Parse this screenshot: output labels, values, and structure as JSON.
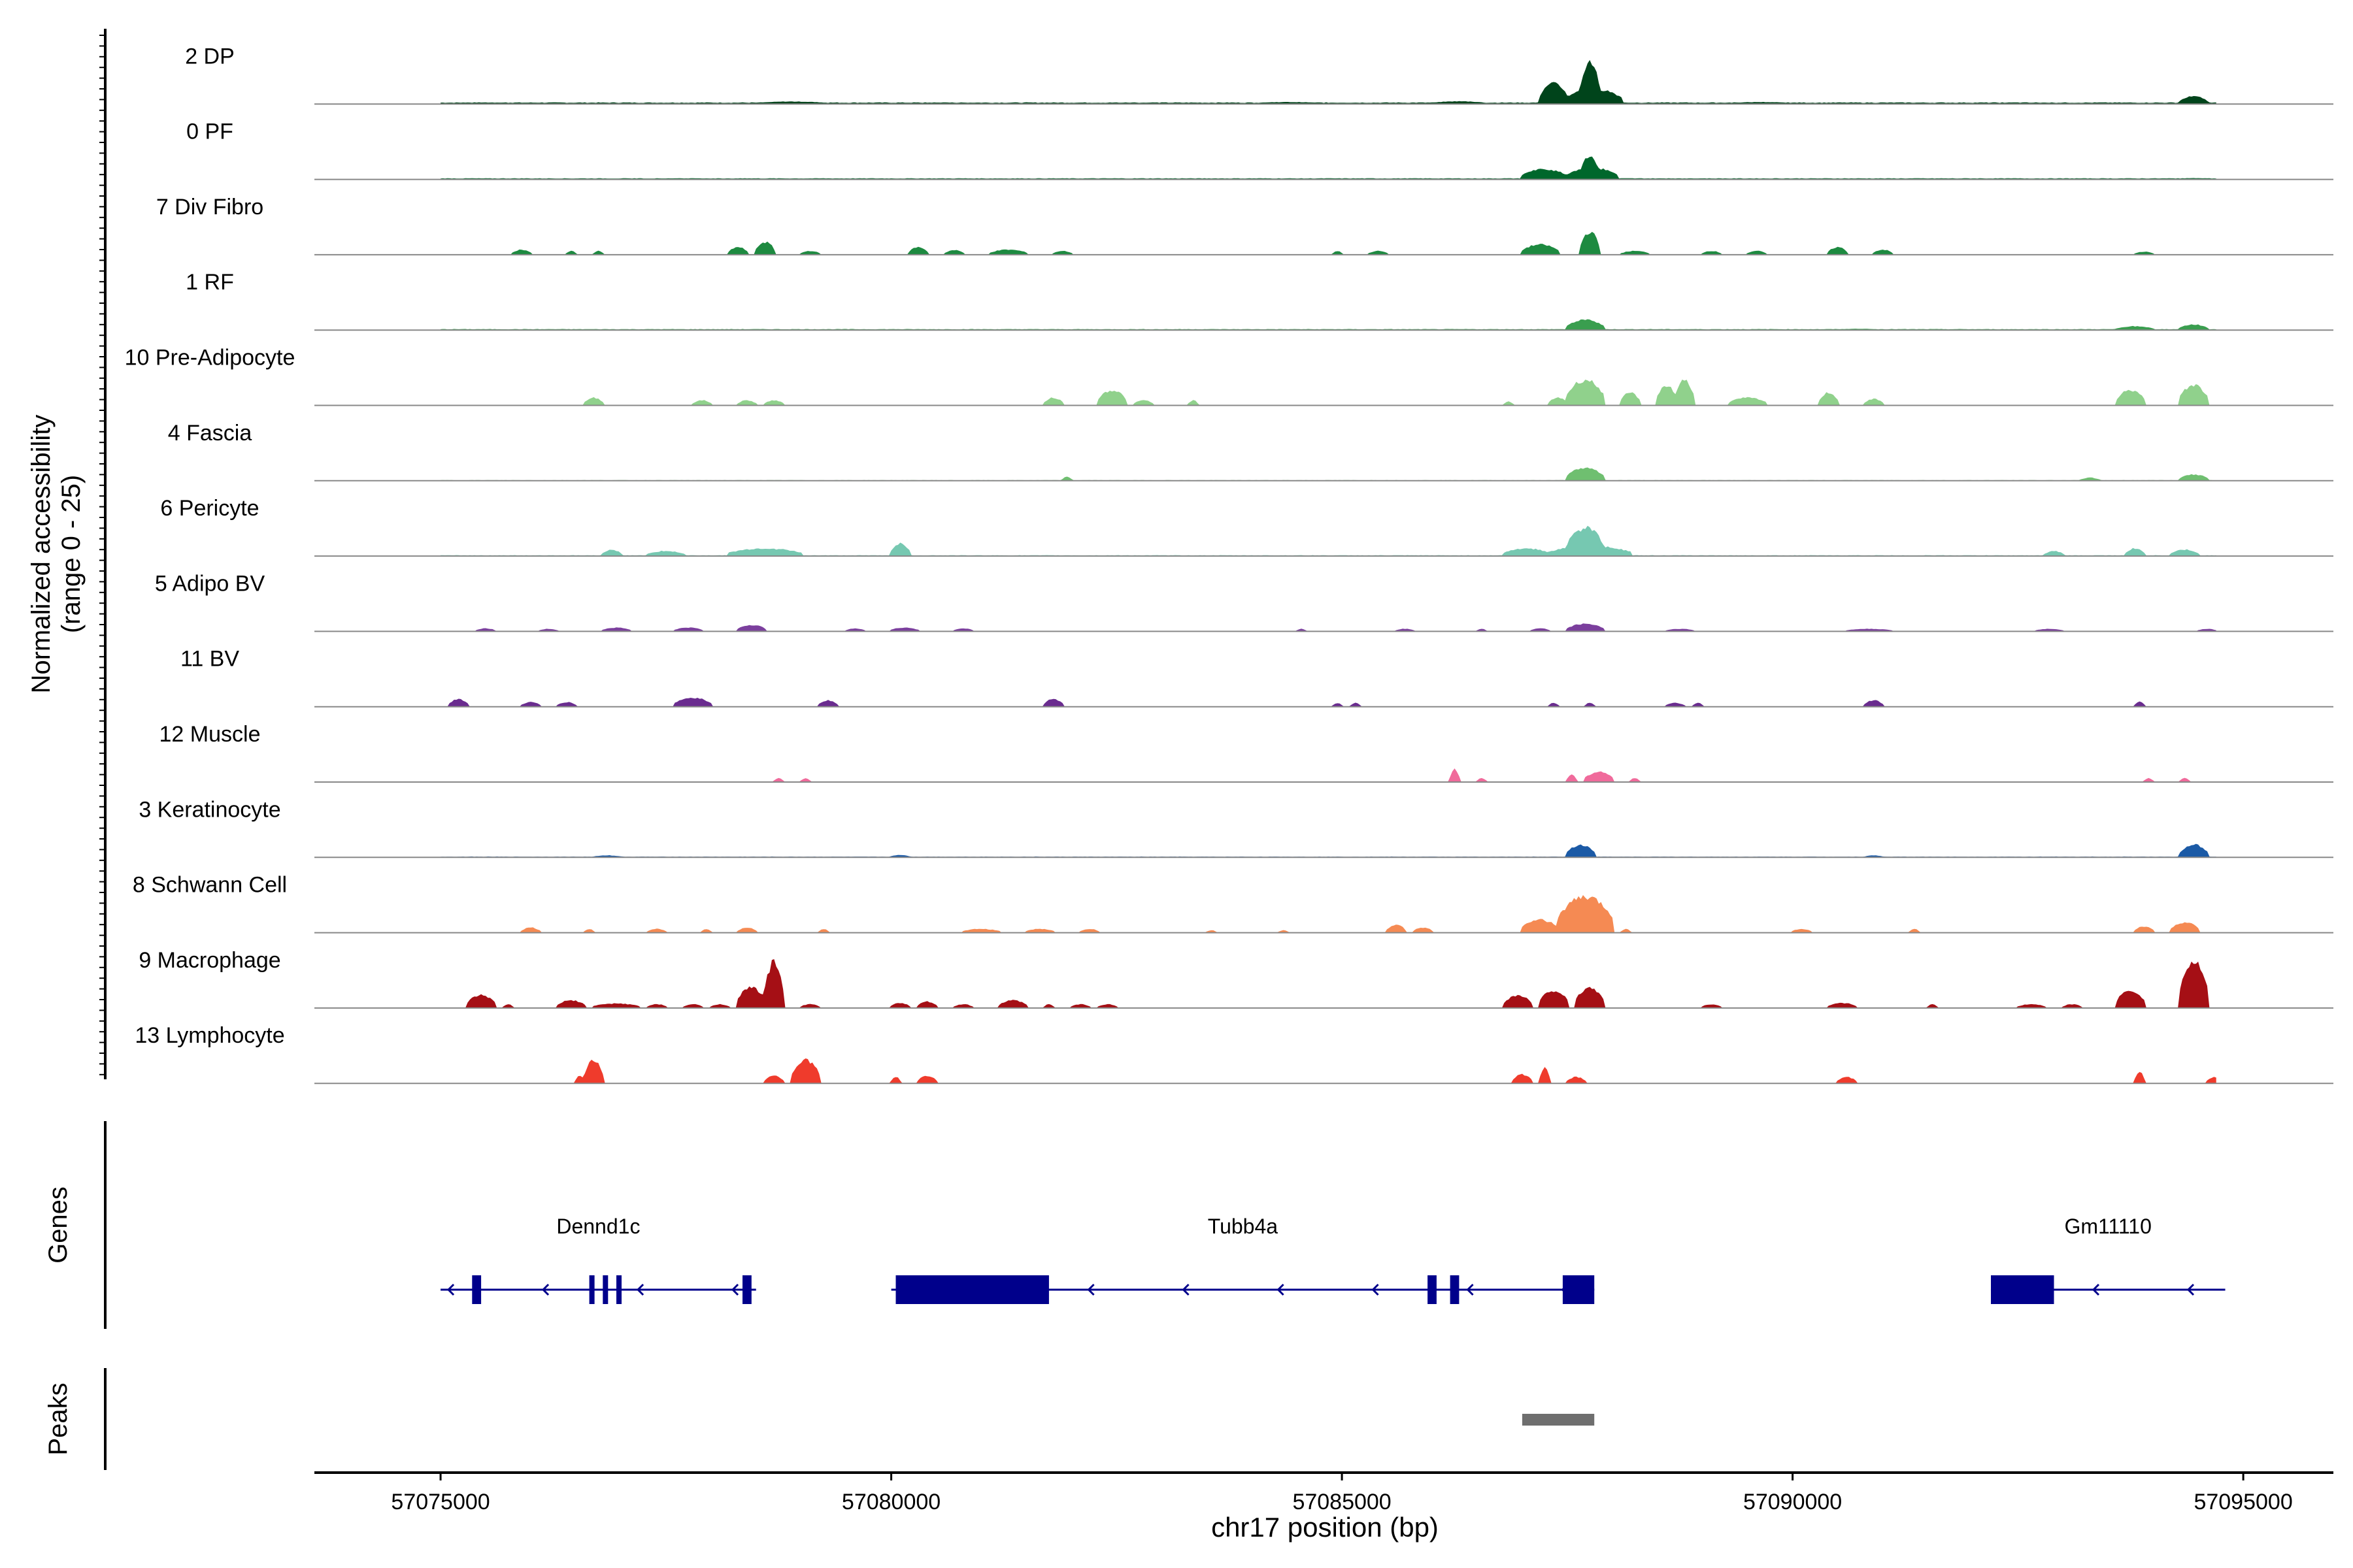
{
  "chart_data": {
    "type": "area",
    "title": "",
    "ylabel_line1": "Normalized accessibility",
    "ylabel_line2": "(range 0 - 25)",
    "xlabel": "chr17 position (bp)",
    "ylim": [
      0,
      25
    ],
    "region": [
      57075000,
      57094700
    ],
    "x_ticks": [
      57075000,
      57080000,
      57085000,
      57090000,
      57095000
    ],
    "x_tick_labels": [
      "57075000",
      "57080000",
      "57085000",
      "57090000",
      "57095000"
    ],
    "tracks": [
      {
        "name": "2 DP",
        "color": "#00441b",
        "baseline": 0.4,
        "noise": 0.25,
        "peaks": [
          [
            57075200,
            57075800,
            0.6
          ],
          [
            57078500,
            57079300,
            1.0
          ],
          [
            57080300,
            57080800,
            0.6
          ],
          [
            57082400,
            57082900,
            0.5
          ],
          [
            57084000,
            57084800,
            0.8
          ],
          [
            57086000,
            57086600,
            1.1
          ],
          [
            57087200,
            57087500,
            8.0
          ],
          [
            57087650,
            57087850,
            17.0
          ],
          [
            57087500,
            57088100,
            6.0
          ],
          [
            57089300,
            57090000,
            0.8
          ],
          [
            57092300,
            57092800,
            0.5
          ],
          [
            57094300,
            57094600,
            3.0
          ]
        ]
      },
      {
        "name": "0 PF",
        "color": "#00672c",
        "baseline": 0.3,
        "noise": 0.15,
        "peaks": [
          [
            57077000,
            57078500,
            0.4
          ],
          [
            57087000,
            57087500,
            4.0
          ],
          [
            57087650,
            57087850,
            9.0
          ],
          [
            57087500,
            57088050,
            4.5
          ],
          [
            57088500,
            57089000,
            0.4
          ],
          [
            57094200,
            57094700,
            0.5
          ]
        ]
      },
      {
        "name": "7 Div Fibro",
        "color": "#1d8a40",
        "baseline": 0,
        "noise": 0,
        "peaks": [
          [
            57075800,
            57076000,
            2.0
          ],
          [
            57076400,
            57076500,
            1.5
          ],
          [
            57076700,
            57076800,
            1.5
          ],
          [
            57078200,
            57078400,
            3.0
          ],
          [
            57078500,
            57078700,
            5.0
          ],
          [
            57079000,
            57079200,
            1.5
          ],
          [
            57080200,
            57080400,
            3.0
          ],
          [
            57080600,
            57080800,
            1.8
          ],
          [
            57081100,
            57081500,
            2.0
          ],
          [
            57081800,
            57082000,
            1.5
          ],
          [
            57084900,
            57085000,
            1.5
          ],
          [
            57085300,
            57085500,
            1.5
          ],
          [
            57087000,
            57087400,
            4.0
          ],
          [
            57087650,
            57087850,
            9.0
          ],
          [
            57088100,
            57088400,
            1.5
          ],
          [
            57089000,
            57089200,
            1.5
          ],
          [
            57089500,
            57089700,
            1.5
          ],
          [
            57090400,
            57090600,
            3.0
          ],
          [
            57090900,
            57091100,
            2.0
          ],
          [
            57093800,
            57094000,
            1.2
          ]
        ]
      },
      {
        "name": "1 RF",
        "color": "#3a9e4f",
        "baseline": 0.25,
        "noise": 0.15,
        "peaks": [
          [
            57087500,
            57087900,
            4.0
          ],
          [
            57090500,
            57091000,
            0.5
          ],
          [
            57093600,
            57094000,
            1.5
          ],
          [
            57094300,
            57094600,
            2.2
          ]
        ]
      },
      {
        "name": "10 Pre-Adipocyte",
        "color": "#90d18c",
        "baseline": 0,
        "noise": 0,
        "peaks": [
          [
            57076600,
            57076800,
            3.0
          ],
          [
            57077800,
            57078000,
            2.0
          ],
          [
            57078300,
            57078500,
            2.0
          ],
          [
            57078600,
            57078800,
            2.0
          ],
          [
            57081700,
            57081900,
            3.0
          ],
          [
            57082300,
            57082600,
            6.0
          ],
          [
            57082700,
            57082900,
            2.0
          ],
          [
            57083300,
            57083400,
            2.0
          ],
          [
            57086800,
            57086900,
            1.5
          ],
          [
            57087300,
            57087500,
            3.0
          ],
          [
            57087500,
            57087900,
            10.0
          ],
          [
            57088100,
            57088300,
            5.0
          ],
          [
            57088500,
            57088700,
            8.0
          ],
          [
            57088700,
            57088900,
            10.0
          ],
          [
            57089300,
            57089700,
            3.0
          ],
          [
            57090300,
            57090500,
            5.0
          ],
          [
            57090800,
            57091000,
            2.5
          ],
          [
            57093600,
            57093900,
            6.0
          ],
          [
            57094300,
            57094600,
            8.0
          ]
        ]
      },
      {
        "name": "4 Fascia",
        "color": "#6fbf70",
        "baseline": 0.15,
        "noise": 0.1,
        "peaks": [
          [
            57081900,
            57082000,
            1.5
          ],
          [
            57087500,
            57087900,
            5.0
          ],
          [
            57093200,
            57093400,
            1.2
          ],
          [
            57094300,
            57094600,
            2.5
          ]
        ]
      },
      {
        "name": "6 Pericyte",
        "color": "#76c8b1",
        "baseline": 0.2,
        "noise": 0.15,
        "peaks": [
          [
            57076800,
            57077000,
            2.5
          ],
          [
            57077300,
            57077700,
            2.0
          ],
          [
            57078200,
            57079000,
            3.0
          ],
          [
            57080000,
            57080200,
            5.0
          ],
          [
            57086800,
            57087300,
            3.0
          ],
          [
            57087500,
            57087900,
            11.0
          ],
          [
            57087300,
            57088200,
            4.0
          ],
          [
            57092800,
            57093000,
            2.0
          ],
          [
            57093700,
            57093900,
            3.0
          ],
          [
            57094200,
            57094500,
            2.5
          ]
        ]
      },
      {
        "name": "5 Adipo BV",
        "color": "#7b3f9d",
        "baseline": 0,
        "noise": 0,
        "peaks": [
          [
            57075400,
            57075600,
            1.2
          ],
          [
            57076100,
            57076300,
            1.0
          ],
          [
            57076800,
            57077100,
            1.5
          ],
          [
            57077600,
            57077900,
            1.5
          ],
          [
            57078300,
            57078600,
            2.5
          ],
          [
            57079500,
            57079700,
            1.2
          ],
          [
            57080000,
            57080300,
            1.5
          ],
          [
            57080700,
            57080900,
            1.2
          ],
          [
            57084500,
            57084600,
            1.0
          ],
          [
            57085600,
            57085800,
            1.0
          ],
          [
            57086500,
            57086600,
            1.0
          ],
          [
            57087100,
            57087300,
            1.2
          ],
          [
            57087500,
            57087900,
            3.0
          ],
          [
            57088600,
            57088900,
            1.0
          ],
          [
            57090600,
            57091100,
            1.0
          ],
          [
            57092700,
            57093000,
            1.0
          ],
          [
            57094500,
            57094700,
            1.0
          ]
        ]
      },
      {
        "name": "11 BV",
        "color": "#6a2c8f",
        "baseline": 0,
        "noise": 0,
        "peaks": [
          [
            57075100,
            57075300,
            3.0
          ],
          [
            57075900,
            57076100,
            1.8
          ],
          [
            57076300,
            57076500,
            1.8
          ],
          [
            57077600,
            57078000,
            3.5
          ],
          [
            57079200,
            57079400,
            2.5
          ],
          [
            57081700,
            57081900,
            3.0
          ],
          [
            57084900,
            57085000,
            1.5
          ],
          [
            57085100,
            57085200,
            1.5
          ],
          [
            57087300,
            57087400,
            1.5
          ],
          [
            57087700,
            57087800,
            1.5
          ],
          [
            57088600,
            57088800,
            1.5
          ],
          [
            57088900,
            57089000,
            1.5
          ],
          [
            57090800,
            57091000,
            2.5
          ],
          [
            57093800,
            57093900,
            2.0
          ]
        ]
      },
      {
        "name": "12 Muscle",
        "color": "#f06a9b",
        "baseline": 0,
        "noise": 0,
        "peaks": [
          [
            57078700,
            57078800,
            1.5
          ],
          [
            57079000,
            57079100,
            1.5
          ],
          [
            57086200,
            57086300,
            5.0
          ],
          [
            57086500,
            57086600,
            1.5
          ],
          [
            57087500,
            57087600,
            3.0
          ],
          [
            57087700,
            57088000,
            4.0
          ],
          [
            57088200,
            57088300,
            1.5
          ],
          [
            57093900,
            57094000,
            1.5
          ],
          [
            57094300,
            57094400,
            1.5
          ]
        ]
      },
      {
        "name": "3 Keratinocyte",
        "color": "#1b5aa6",
        "baseline": 0.2,
        "noise": 0.12,
        "peaks": [
          [
            57076700,
            57077000,
            0.8
          ],
          [
            57080000,
            57080200,
            1.0
          ],
          [
            57087500,
            57087800,
            5.0
          ],
          [
            57090800,
            57091000,
            0.8
          ],
          [
            57094300,
            57094600,
            5.0
          ]
        ]
      },
      {
        "name": "8 Schwann Cell",
        "color": "#f58a53",
        "baseline": 0,
        "noise": 0,
        "peaks": [
          [
            57075900,
            57076100,
            2.0
          ],
          [
            57076600,
            57076700,
            1.5
          ],
          [
            57077300,
            57077500,
            1.5
          ],
          [
            57077900,
            57078000,
            1.5
          ],
          [
            57078300,
            57078500,
            2.0
          ],
          [
            57079200,
            57079300,
            1.5
          ],
          [
            57080800,
            57081200,
            1.5
          ],
          [
            57081500,
            57081800,
            1.5
          ],
          [
            57082100,
            57082300,
            1.5
          ],
          [
            57083500,
            57083600,
            1.0
          ],
          [
            57084300,
            57084400,
            1.0
          ],
          [
            57085500,
            57085700,
            3.0
          ],
          [
            57085800,
            57086000,
            2.0
          ],
          [
            57087000,
            57087400,
            5.0
          ],
          [
            57087400,
            57088000,
            14.0
          ],
          [
            57088100,
            57088200,
            1.5
          ],
          [
            57090000,
            57090200,
            1.5
          ],
          [
            57091300,
            57091400,
            1.5
          ],
          [
            57093800,
            57094000,
            2.5
          ],
          [
            57094200,
            57094500,
            4.0
          ]
        ]
      },
      {
        "name": "9 Macrophage",
        "color": "#a50f15",
        "baseline": 0,
        "noise": 0,
        "peaks": [
          [
            57075300,
            57075600,
            5.0
          ],
          [
            57075700,
            57075800,
            1.5
          ],
          [
            57076300,
            57076600,
            3.0
          ],
          [
            57076700,
            57077200,
            1.8
          ],
          [
            57077300,
            57077500,
            1.5
          ],
          [
            57077700,
            57077900,
            1.5
          ],
          [
            57078000,
            57078200,
            1.5
          ],
          [
            57078300,
            57078600,
            8.0
          ],
          [
            57078600,
            57078800,
            18.0
          ],
          [
            57079000,
            57079200,
            1.5
          ],
          [
            57080000,
            57080200,
            2.0
          ],
          [
            57080300,
            57080500,
            2.5
          ],
          [
            57080700,
            57080900,
            1.5
          ],
          [
            57081200,
            57081500,
            3.0
          ],
          [
            57081700,
            57081800,
            1.5
          ],
          [
            57082000,
            57082200,
            1.5
          ],
          [
            57082300,
            57082500,
            1.5
          ],
          [
            57086800,
            57087100,
            5.0
          ],
          [
            57087200,
            57087500,
            7.0
          ],
          [
            57087600,
            57087900,
            8.0
          ],
          [
            57089000,
            57089200,
            1.5
          ],
          [
            57090400,
            57090700,
            2.0
          ],
          [
            57091500,
            57091600,
            1.5
          ],
          [
            57092500,
            57092800,
            1.5
          ],
          [
            57093000,
            57093200,
            1.5
          ],
          [
            57093600,
            57093900,
            7.0
          ],
          [
            57094300,
            57094600,
            18.0
          ],
          [
            57094800,
            57094900,
            1.5
          ]
        ]
      },
      {
        "name": "13 Lymphocyte",
        "color": "#ef3b2c",
        "baseline": 0,
        "noise": 0,
        "peaks": [
          [
            57076500,
            57076600,
            3.0
          ],
          [
            57076600,
            57076800,
            9.0
          ],
          [
            57078600,
            57078800,
            3.0
          ],
          [
            57078900,
            57079200,
            9.0
          ],
          [
            57080000,
            57080100,
            2.5
          ],
          [
            57080300,
            57080500,
            3.0
          ],
          [
            57086900,
            57087100,
            3.5
          ],
          [
            57087200,
            57087300,
            6.0
          ],
          [
            57087500,
            57087700,
            2.5
          ],
          [
            57090500,
            57090700,
            2.5
          ],
          [
            57093800,
            57093900,
            4.5
          ],
          [
            57094600,
            57094800,
            2.5
          ]
        ]
      }
    ],
    "genes_label": "Genes",
    "genes": [
      {
        "name": "Dennd1c",
        "start": 57075000,
        "end": 57078500,
        "strand": "-",
        "exons": [
          [
            57075350,
            57075450
          ],
          [
            57076650,
            57076700
          ],
          [
            57076800,
            57076850
          ],
          [
            57076950,
            57077000
          ],
          [
            57078350,
            57078450
          ]
        ]
      },
      {
        "name": "Tubb4a",
        "start": 57080000,
        "end": 57087800,
        "strand": "-",
        "exons": [
          [
            57080050,
            57081750
          ],
          [
            57085950,
            57086050
          ],
          [
            57086200,
            57086300
          ],
          [
            57087450,
            57087800
          ]
        ]
      },
      {
        "name": "Gm11110",
        "start": 57092200,
        "end": 57094800,
        "strand": "-",
        "exons": [
          [
            57092200,
            57092900
          ]
        ]
      }
    ],
    "peaks_label": "Peaks",
    "peak_regions": [
      [
        57087000,
        57087800
      ]
    ]
  }
}
